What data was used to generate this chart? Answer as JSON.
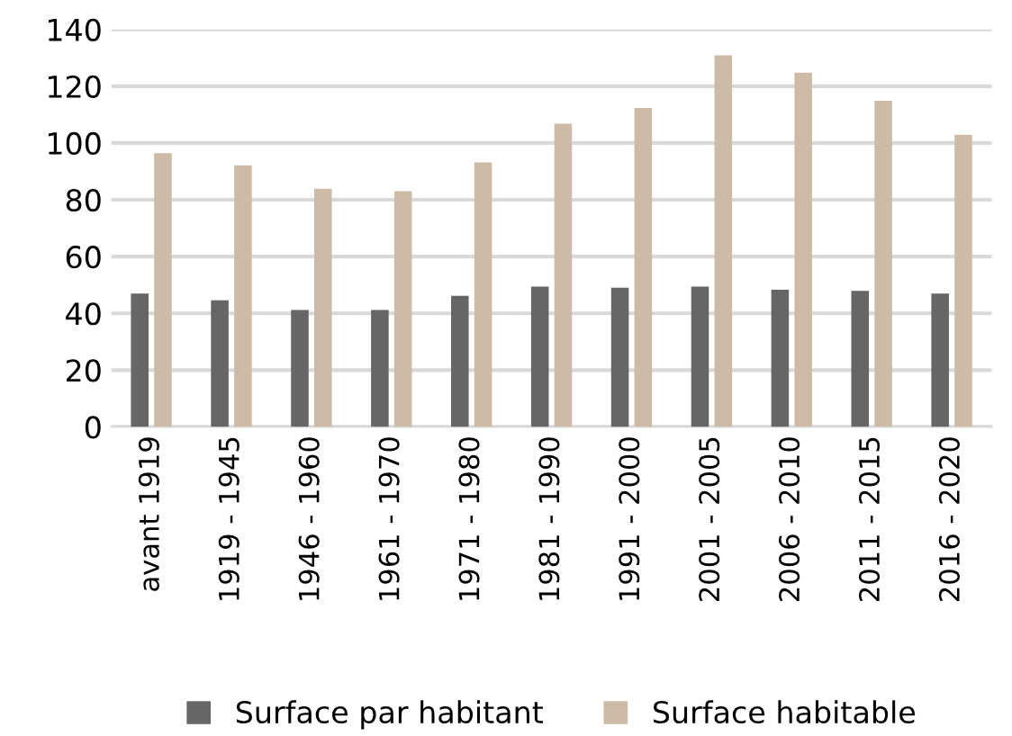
{
  "chart_data": {
    "type": "bar",
    "categories": [
      "avant 1919",
      "1919 - 1945",
      "1946 - 1960",
      "1961 - 1970",
      "1971 - 1980",
      "1981 - 1990",
      "1991 - 2000",
      "2001 - 2005",
      "2006 - 2010",
      "2011 - 2015",
      "2016 - 2020"
    ],
    "series": [
      {
        "name": "Surface par habitant",
        "color": "#666666",
        "values": [
          47,
          44.6,
          41.2,
          41.2,
          46.2,
          49.4,
          49,
          49.4,
          48.3,
          47.9,
          47
        ]
      },
      {
        "name": "Surface habitable",
        "color": "#cdbba8",
        "values": [
          96.4,
          92.1,
          83.9,
          83,
          93.2,
          106.8,
          112.3,
          130.9,
          124.8,
          114.9,
          102.9
        ]
      }
    ],
    "ylim": [
      0,
      140
    ],
    "yticks": [
      0,
      20,
      40,
      60,
      80,
      100,
      120,
      140
    ],
    "grid": "y",
    "legend": "bottom"
  }
}
